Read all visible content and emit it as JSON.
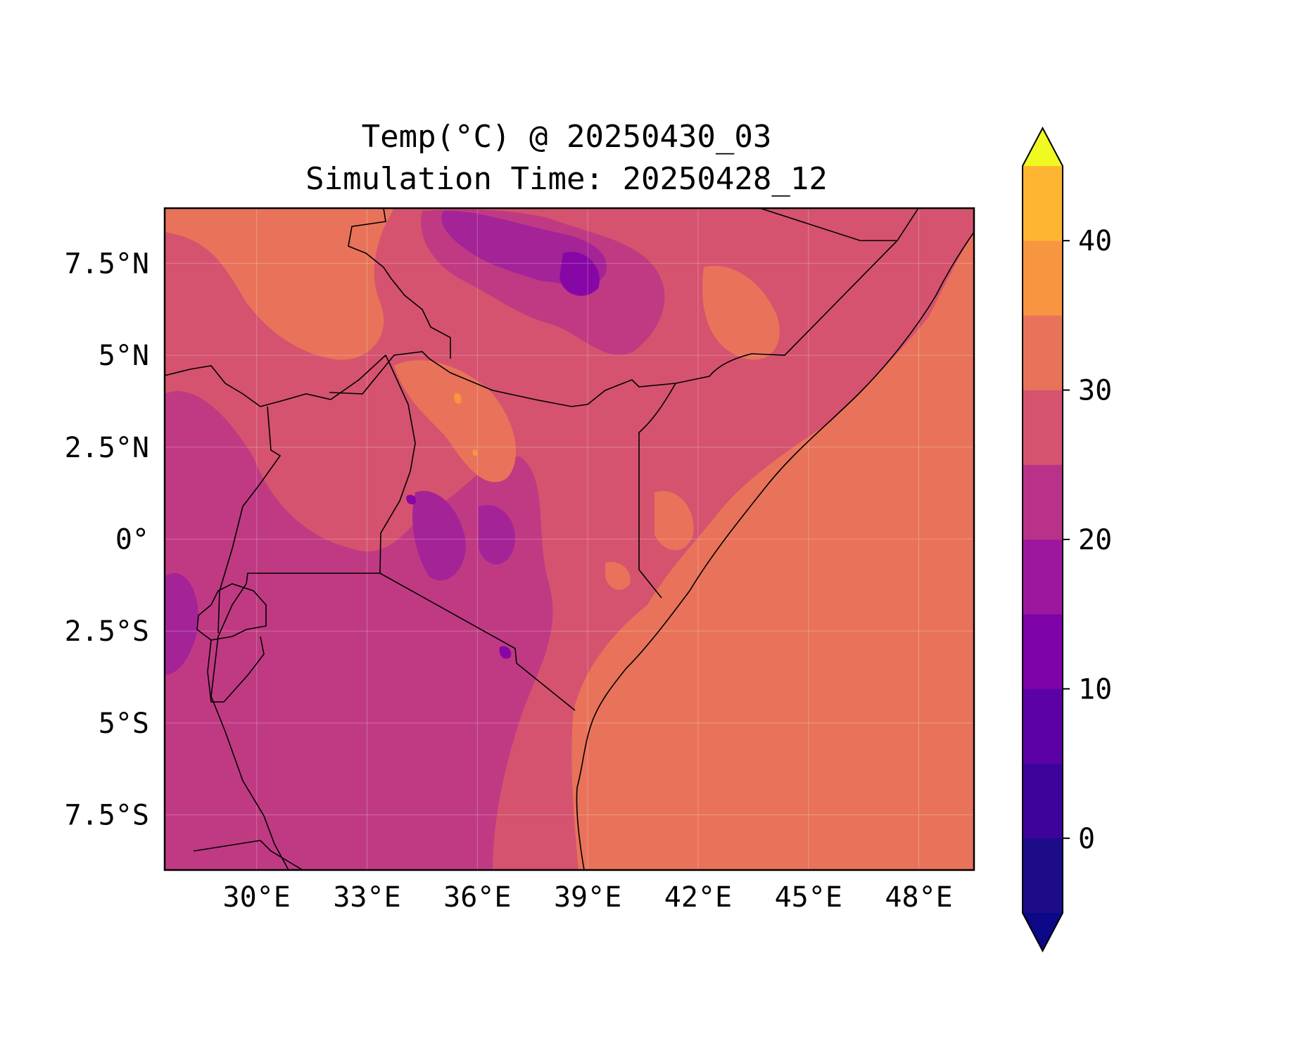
{
  "title": {
    "line1": "Temp(°C) @ 20250430_03",
    "line2": "Simulation Time: 20250428_12"
  },
  "map": {
    "lon_range": [
      27.5,
      49.5
    ],
    "lat_range": [
      -9.0,
      9.0
    ],
    "lon_ticks": [
      {
        "value": 30,
        "label": "30°E"
      },
      {
        "value": 33,
        "label": "33°E"
      },
      {
        "value": 36,
        "label": "36°E"
      },
      {
        "value": 39,
        "label": "39°E"
      },
      {
        "value": 42,
        "label": "42°E"
      },
      {
        "value": 45,
        "label": "45°E"
      },
      {
        "value": 48,
        "label": "48°E"
      }
    ],
    "lat_ticks": [
      {
        "value": 7.5,
        "label": "7.5°N"
      },
      {
        "value": 5,
        "label": "5°N"
      },
      {
        "value": 2.5,
        "label": "2.5°N"
      },
      {
        "value": 0,
        "label": "0°"
      },
      {
        "value": -2.5,
        "label": "2.5°S"
      },
      {
        "value": -5,
        "label": "5°S"
      },
      {
        "value": -7.5,
        "label": "7.5°S"
      }
    ],
    "gridlines": true,
    "colors": {
      "ocean": "#e8735a",
      "band_25_30": "#e8735a",
      "band_20_25": "#d5536f",
      "band_15_20": "#c03a83",
      "band_10_15": "#a42497",
      "band_5_10": "#8707a6",
      "band_30_35": "#f89540"
    }
  },
  "colorbar": {
    "min": -5,
    "max": 45,
    "levels": [
      -5,
      0,
      5,
      10,
      15,
      20,
      25,
      30,
      35,
      40,
      45
    ],
    "extend": "both",
    "colors": [
      "#1c0c88",
      "#3c049b",
      "#5c01a6",
      "#7e03a8",
      "#9c179e",
      "#b93289",
      "#d5536f",
      "#e8735a",
      "#f89540",
      "#feb632",
      "#f4e02a"
    ],
    "under_color": "#0d0887",
    "over_color": "#f0f921",
    "ticks": [
      {
        "value": 0,
        "label": "0"
      },
      {
        "value": 10,
        "label": "10"
      },
      {
        "value": 20,
        "label": "20"
      },
      {
        "value": 30,
        "label": "30"
      },
      {
        "value": 40,
        "label": "40"
      }
    ]
  }
}
